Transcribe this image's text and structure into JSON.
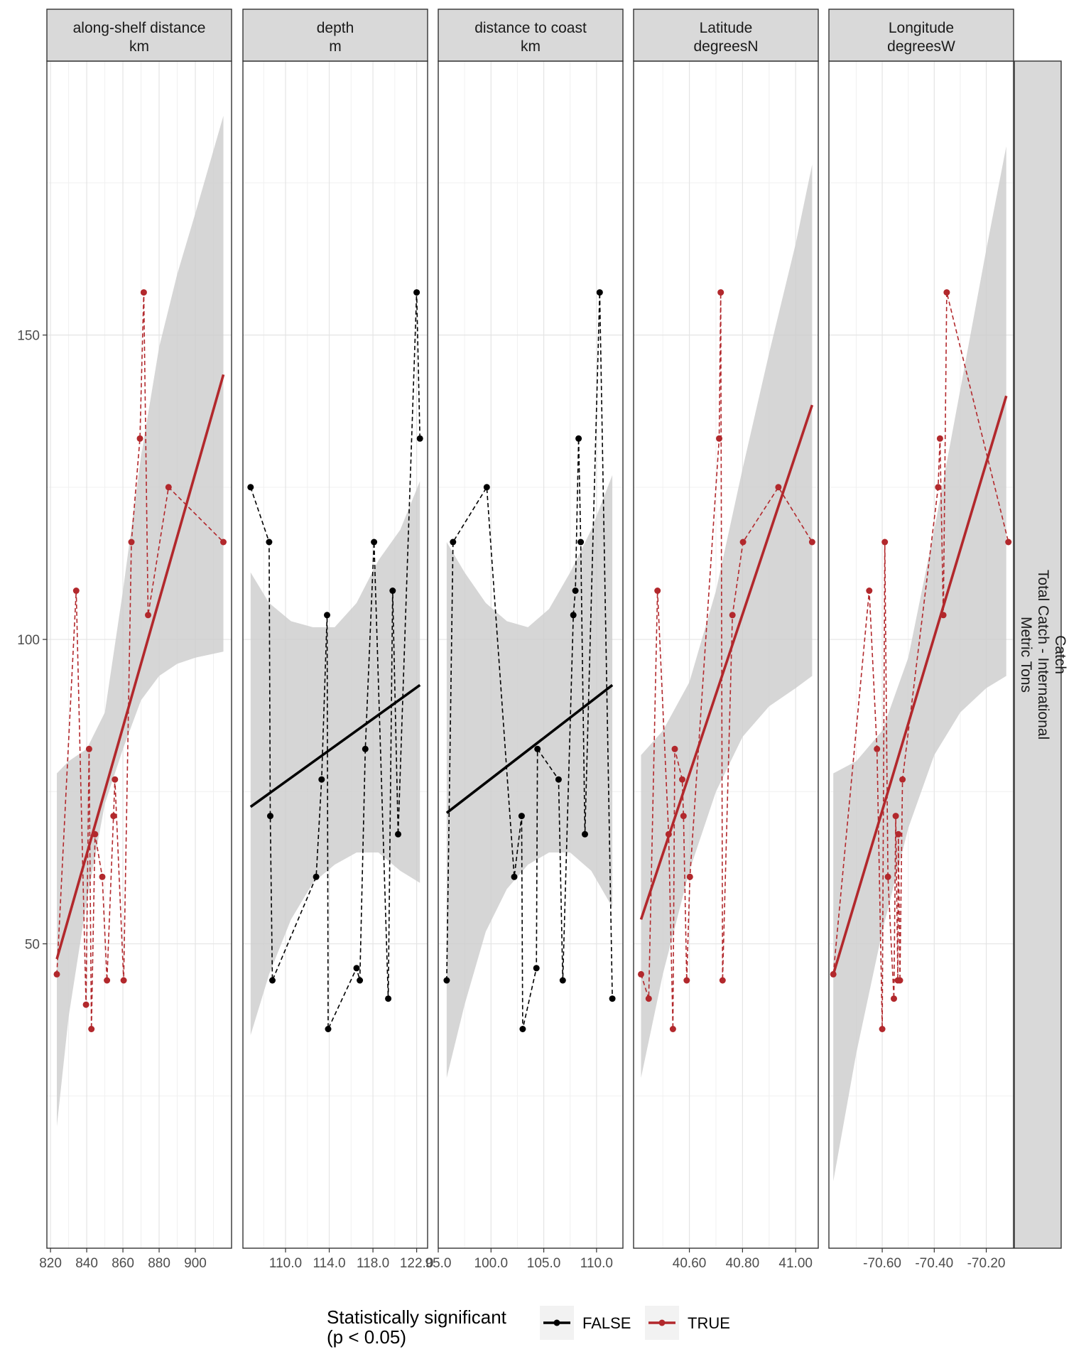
{
  "chart_data": {
    "type": "scatter",
    "subtype": "faceted scatter with dashed connecting lines and linear fit with confidence band",
    "row_strip": [
      "Catch",
      "Total Catch - International",
      "Metric Tons"
    ],
    "y_ticks": [
      50,
      100,
      150
    ],
    "ylim": [
      0,
      195
    ],
    "colors": {
      "FALSE": "#000000",
      "TRUE": "#b2282c",
      "band": "#cccccc"
    },
    "legend": {
      "title_lines": [
        "Statistically significant",
        "(p < 0.05)"
      ],
      "placement": "bottom",
      "entries": [
        {
          "key": "FALSE",
          "label": "FALSE"
        },
        {
          "key": "TRUE",
          "label": "TRUE"
        }
      ]
    },
    "facets": [
      {
        "strip": [
          "along-shelf distance",
          "km"
        ],
        "significant": "TRUE",
        "xlim": [
          818,
          920
        ],
        "x_ticks": [
          {
            "v": 820,
            "label": "820"
          },
          {
            "v": 840,
            "label": "840"
          },
          {
            "v": 860,
            "label": "860"
          },
          {
            "v": 880,
            "label": "880"
          },
          {
            "v": 900,
            "label": "900"
          }
        ],
        "points": [
          [
            823.5,
            45
          ],
          [
            834.2,
            108
          ],
          [
            839.6,
            40
          ],
          [
            841.3,
            82
          ],
          [
            842.6,
            36
          ],
          [
            844.6,
            68
          ],
          [
            848.6,
            61
          ],
          [
            851.2,
            44
          ],
          [
            854.8,
            71
          ],
          [
            855.6,
            77
          ],
          [
            860.4,
            44
          ],
          [
            864.7,
            116
          ],
          [
            869.4,
            133
          ],
          [
            871.5,
            157
          ],
          [
            873.9,
            104
          ],
          [
            885.2,
            125
          ],
          [
            915.5,
            116
          ]
        ],
        "fit": {
          "x": [
            823.5,
            915.5
          ],
          "y": [
            47.5,
            143.5
          ]
        },
        "band": {
          "x": [
            823.5,
            830,
            840,
            850,
            860,
            870,
            880,
            890,
            900,
            915.5
          ],
          "lo": [
            20,
            38,
            57,
            73,
            82,
            90,
            94,
            96,
            97,
            98
          ],
          "hi": [
            78,
            80,
            82,
            88,
            108,
            130,
            148,
            160,
            170,
            186
          ]
        }
      },
      {
        "strip": [
          "depth",
          "m"
        ],
        "significant": "FALSE",
        "xlim": [
          106.1,
          123.0
        ],
        "x_ticks": [
          {
            "v": 110,
            "label": "110.0"
          },
          {
            "v": 114,
            "label": "114.0"
          },
          {
            "v": 118,
            "label": "118.0"
          },
          {
            "v": 122,
            "label": "122.0"
          }
        ],
        "points": [
          [
            106.8,
            125
          ],
          [
            108.5,
            116
          ],
          [
            108.6,
            71
          ],
          [
            108.8,
            44
          ],
          [
            112.8,
            61
          ],
          [
            113.3,
            77
          ],
          [
            113.8,
            104
          ],
          [
            113.9,
            36
          ],
          [
            116.5,
            46
          ],
          [
            116.8,
            44
          ],
          [
            117.3,
            82
          ],
          [
            118.1,
            116
          ],
          [
            119.4,
            41
          ],
          [
            119.8,
            108
          ],
          [
            120.3,
            68
          ],
          [
            122.0,
            157
          ],
          [
            122.3,
            133
          ]
        ],
        "fit": {
          "x": [
            106.8,
            122.3
          ],
          "y": [
            72.5,
            92.5
          ]
        },
        "band": {
          "x": [
            106.8,
            108.5,
            110.5,
            112.5,
            114.5,
            116.5,
            118.5,
            120.5,
            122.3
          ],
          "lo": [
            35,
            45,
            54,
            60,
            63,
            65,
            65,
            62,
            60
          ],
          "hi": [
            111,
            106,
            103,
            102,
            102,
            106,
            113,
            118,
            126
          ]
        }
      },
      {
        "strip": [
          "distance to coast",
          "km"
        ],
        "significant": "FALSE",
        "xlim": [
          95.0,
          112.5
        ],
        "x_ticks": [
          {
            "v": 95,
            "label": "95.0"
          },
          {
            "v": 100,
            "label": "100.0"
          },
          {
            "v": 105,
            "label": "105.0"
          },
          {
            "v": 110,
            "label": "110.0"
          }
        ],
        "points": [
          [
            95.8,
            44
          ],
          [
            96.4,
            116
          ],
          [
            99.6,
            125
          ],
          [
            102.2,
            61
          ],
          [
            102.9,
            71
          ],
          [
            103.0,
            36
          ],
          [
            104.3,
            46
          ],
          [
            104.4,
            82
          ],
          [
            106.4,
            77
          ],
          [
            106.8,
            44
          ],
          [
            107.8,
            104
          ],
          [
            108.0,
            108
          ],
          [
            108.3,
            133
          ],
          [
            108.5,
            116
          ],
          [
            108.9,
            68
          ],
          [
            110.3,
            157
          ],
          [
            111.5,
            41
          ]
        ],
        "fit": {
          "x": [
            95.8,
            111.5
          ],
          "y": [
            71.5,
            92.5
          ]
        },
        "band": {
          "x": [
            95.8,
            97.5,
            99.5,
            101.5,
            103.5,
            105.5,
            107.5,
            109.5,
            111.5
          ],
          "lo": [
            28,
            40,
            52,
            59,
            63,
            65,
            65,
            62,
            56
          ],
          "hi": [
            116,
            111,
            106,
            103,
            102,
            105,
            111,
            118,
            127
          ]
        }
      },
      {
        "strip": [
          "Latitude",
          "degreesN"
        ],
        "significant": "TRUE",
        "xlim": [
          40.39,
          41.085
        ],
        "x_ticks": [
          {
            "v": 40.6,
            "label": "40.60"
          },
          {
            "v": 40.8,
            "label": "40.80"
          },
          {
            "v": 41.0,
            "label": "41.00"
          }
        ],
        "points": [
          [
            40.418,
            45
          ],
          [
            40.447,
            41
          ],
          [
            40.48,
            108
          ],
          [
            40.522,
            68
          ],
          [
            40.538,
            36
          ],
          [
            40.545,
            82
          ],
          [
            40.573,
            77
          ],
          [
            40.578,
            71
          ],
          [
            40.59,
            44
          ],
          [
            40.602,
            61
          ],
          [
            40.712,
            133
          ],
          [
            40.718,
            157
          ],
          [
            40.725,
            44
          ],
          [
            40.762,
            104
          ],
          [
            40.802,
            116
          ],
          [
            40.935,
            125
          ],
          [
            41.062,
            116
          ]
        ],
        "fit": {
          "x": [
            40.418,
            41.062
          ],
          "y": [
            54,
            138.5
          ]
        },
        "band": {
          "x": [
            40.418,
            40.5,
            40.6,
            40.7,
            40.8,
            40.9,
            41.0,
            41.062
          ],
          "lo": [
            28,
            45,
            62,
            75,
            84,
            89,
            92,
            94
          ],
          "hi": [
            81,
            85,
            93,
            108,
            128,
            147,
            165,
            178
          ]
        }
      },
      {
        "strip": [
          "Longitude",
          "degreesW"
        ],
        "significant": "TRUE",
        "xlim": [
          -70.805,
          -70.095
        ],
        "x_ticks": [
          {
            "v": -70.6,
            "label": "-70.60"
          },
          {
            "v": -70.4,
            "label": "-70.40"
          },
          {
            "v": -70.2,
            "label": "-70.20"
          }
        ],
        "points": [
          [
            -70.788,
            45
          ],
          [
            -70.65,
            108
          ],
          [
            -70.62,
            82
          ],
          [
            -70.6,
            36
          ],
          [
            -70.59,
            116
          ],
          [
            -70.578,
            61
          ],
          [
            -70.555,
            41
          ],
          [
            -70.548,
            71
          ],
          [
            -70.54,
            44
          ],
          [
            -70.538,
            68
          ],
          [
            -70.532,
            44
          ],
          [
            -70.522,
            77
          ],
          [
            -70.385,
            125
          ],
          [
            -70.378,
            133
          ],
          [
            -70.365,
            104
          ],
          [
            -70.352,
            157
          ],
          [
            -70.115,
            116
          ]
        ],
        "fit": {
          "x": [
            -70.788,
            -70.123
          ],
          "y": [
            45,
            140
          ]
        },
        "band": {
          "x": [
            -70.788,
            -70.7,
            -70.6,
            -70.5,
            -70.4,
            -70.3,
            -70.2,
            -70.123
          ],
          "lo": [
            11,
            32,
            52,
            69,
            81,
            88,
            92,
            94
          ],
          "hi": [
            78,
            80,
            85,
            97,
            118,
            141,
            164,
            181
          ]
        }
      }
    ]
  }
}
